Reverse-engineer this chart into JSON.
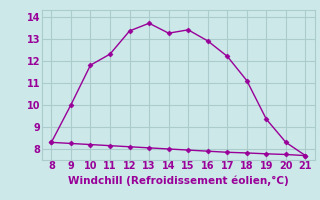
{
  "x_upper": [
    8,
    9,
    10,
    11,
    12,
    13,
    14,
    15,
    16,
    17,
    18,
    19,
    20,
    21
  ],
  "y_upper": [
    8.3,
    10.0,
    11.8,
    12.3,
    13.35,
    13.7,
    13.25,
    13.4,
    12.9,
    12.2,
    11.1,
    9.35,
    8.3,
    7.7
  ],
  "x_lower": [
    8,
    9,
    10,
    11,
    12,
    13,
    14,
    15,
    16,
    17,
    18,
    19,
    20,
    21
  ],
  "y_lower": [
    8.3,
    8.25,
    8.2,
    8.15,
    8.1,
    8.05,
    8.0,
    7.95,
    7.9,
    7.85,
    7.82,
    7.78,
    7.75,
    7.7
  ],
  "line_color": "#990099",
  "marker": "D",
  "marker_size": 2.5,
  "bg_color": "#cce8e8",
  "grid_color": "#aacccc",
  "xlabel": "Windchill (Refroidissement éolien,°C)",
  "xlim": [
    7.5,
    21.5
  ],
  "ylim": [
    7.5,
    14.3
  ],
  "xticks": [
    8,
    9,
    10,
    11,
    12,
    13,
    14,
    15,
    16,
    17,
    18,
    19,
    20,
    21
  ],
  "yticks": [
    8,
    9,
    10,
    11,
    12,
    13,
    14
  ],
  "xlabel_color": "#990099",
  "xlabel_fontsize": 7.5,
  "tick_fontsize": 7,
  "tick_color": "#990099",
  "linewidth": 1.0
}
